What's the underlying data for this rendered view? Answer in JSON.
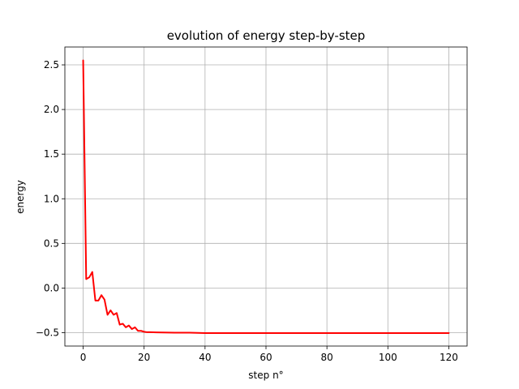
{
  "chart_data": {
    "type": "line",
    "title": "evolution of energy step-by-step",
    "xlabel": "step n°",
    "ylabel": "energy",
    "xlim": [
      -6,
      126
    ],
    "ylim": [
      -0.65,
      2.7
    ],
    "xticks": [
      0,
      20,
      40,
      60,
      80,
      100,
      120
    ],
    "xtick_labels": [
      "0",
      "20",
      "40",
      "60",
      "80",
      "100",
      "120"
    ],
    "yticks": [
      -0.5,
      0.0,
      0.5,
      1.0,
      1.5,
      2.0,
      2.5
    ],
    "ytick_labels": [
      "−0.5",
      "0.0",
      "0.5",
      "1.0",
      "1.5",
      "2.0",
      "2.5"
    ],
    "grid": true,
    "series": [
      {
        "color": "#ff0000",
        "x": [
          0,
          1,
          2,
          3,
          4,
          5,
          6,
          7,
          8,
          9,
          10,
          11,
          12,
          13,
          14,
          15,
          16,
          17,
          18,
          19,
          20,
          21,
          22,
          24,
          26,
          28,
          30,
          35,
          40,
          50,
          60,
          70,
          80,
          90,
          100,
          110,
          120
        ],
        "y": [
          2.55,
          0.1,
          0.12,
          0.18,
          -0.14,
          -0.14,
          -0.08,
          -0.13,
          -0.3,
          -0.25,
          -0.3,
          -0.28,
          -0.41,
          -0.4,
          -0.44,
          -0.42,
          -0.46,
          -0.44,
          -0.48,
          -0.48,
          -0.49,
          -0.495,
          -0.495,
          -0.497,
          -0.498,
          -0.499,
          -0.5,
          -0.5,
          -0.505,
          -0.505,
          -0.505,
          -0.505,
          -0.505,
          -0.505,
          -0.505,
          -0.505,
          -0.505
        ]
      }
    ]
  }
}
